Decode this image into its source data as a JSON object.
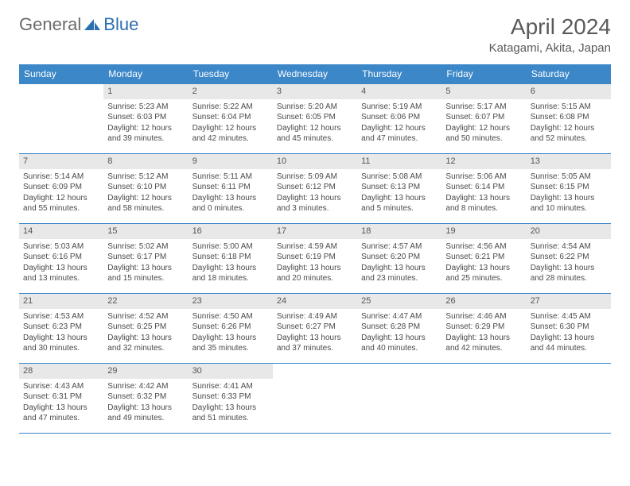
{
  "brand": {
    "part1": "General",
    "part2": "Blue",
    "icon_color": "#2b6fb0"
  },
  "title": "April 2024",
  "location": "Katagami, Akita, Japan",
  "colors": {
    "header_bg": "#3b87c8",
    "header_text": "#ffffff",
    "cell_border": "#3b87c8",
    "daynum_bg": "#e8e8e8",
    "text": "#4a4a4a"
  },
  "typography": {
    "title_fontsize": 28,
    "location_fontsize": 15,
    "dayheader_fontsize": 12,
    "cell_fontsize": 10
  },
  "day_headers": [
    "Sunday",
    "Monday",
    "Tuesday",
    "Wednesday",
    "Thursday",
    "Friday",
    "Saturday"
  ],
  "weeks": [
    [
      {
        "day": "",
        "lines": []
      },
      {
        "day": "1",
        "lines": [
          "Sunrise: 5:23 AM",
          "Sunset: 6:03 PM",
          "Daylight: 12 hours and 39 minutes."
        ]
      },
      {
        "day": "2",
        "lines": [
          "Sunrise: 5:22 AM",
          "Sunset: 6:04 PM",
          "Daylight: 12 hours and 42 minutes."
        ]
      },
      {
        "day": "3",
        "lines": [
          "Sunrise: 5:20 AM",
          "Sunset: 6:05 PM",
          "Daylight: 12 hours and 45 minutes."
        ]
      },
      {
        "day": "4",
        "lines": [
          "Sunrise: 5:19 AM",
          "Sunset: 6:06 PM",
          "Daylight: 12 hours and 47 minutes."
        ]
      },
      {
        "day": "5",
        "lines": [
          "Sunrise: 5:17 AM",
          "Sunset: 6:07 PM",
          "Daylight: 12 hours and 50 minutes."
        ]
      },
      {
        "day": "6",
        "lines": [
          "Sunrise: 5:15 AM",
          "Sunset: 6:08 PM",
          "Daylight: 12 hours and 52 minutes."
        ]
      }
    ],
    [
      {
        "day": "7",
        "lines": [
          "Sunrise: 5:14 AM",
          "Sunset: 6:09 PM",
          "Daylight: 12 hours and 55 minutes."
        ]
      },
      {
        "day": "8",
        "lines": [
          "Sunrise: 5:12 AM",
          "Sunset: 6:10 PM",
          "Daylight: 12 hours and 58 minutes."
        ]
      },
      {
        "day": "9",
        "lines": [
          "Sunrise: 5:11 AM",
          "Sunset: 6:11 PM",
          "Daylight: 13 hours and 0 minutes."
        ]
      },
      {
        "day": "10",
        "lines": [
          "Sunrise: 5:09 AM",
          "Sunset: 6:12 PM",
          "Daylight: 13 hours and 3 minutes."
        ]
      },
      {
        "day": "11",
        "lines": [
          "Sunrise: 5:08 AM",
          "Sunset: 6:13 PM",
          "Daylight: 13 hours and 5 minutes."
        ]
      },
      {
        "day": "12",
        "lines": [
          "Sunrise: 5:06 AM",
          "Sunset: 6:14 PM",
          "Daylight: 13 hours and 8 minutes."
        ]
      },
      {
        "day": "13",
        "lines": [
          "Sunrise: 5:05 AM",
          "Sunset: 6:15 PM",
          "Daylight: 13 hours and 10 minutes."
        ]
      }
    ],
    [
      {
        "day": "14",
        "lines": [
          "Sunrise: 5:03 AM",
          "Sunset: 6:16 PM",
          "Daylight: 13 hours and 13 minutes."
        ]
      },
      {
        "day": "15",
        "lines": [
          "Sunrise: 5:02 AM",
          "Sunset: 6:17 PM",
          "Daylight: 13 hours and 15 minutes."
        ]
      },
      {
        "day": "16",
        "lines": [
          "Sunrise: 5:00 AM",
          "Sunset: 6:18 PM",
          "Daylight: 13 hours and 18 minutes."
        ]
      },
      {
        "day": "17",
        "lines": [
          "Sunrise: 4:59 AM",
          "Sunset: 6:19 PM",
          "Daylight: 13 hours and 20 minutes."
        ]
      },
      {
        "day": "18",
        "lines": [
          "Sunrise: 4:57 AM",
          "Sunset: 6:20 PM",
          "Daylight: 13 hours and 23 minutes."
        ]
      },
      {
        "day": "19",
        "lines": [
          "Sunrise: 4:56 AM",
          "Sunset: 6:21 PM",
          "Daylight: 13 hours and 25 minutes."
        ]
      },
      {
        "day": "20",
        "lines": [
          "Sunrise: 4:54 AM",
          "Sunset: 6:22 PM",
          "Daylight: 13 hours and 28 minutes."
        ]
      }
    ],
    [
      {
        "day": "21",
        "lines": [
          "Sunrise: 4:53 AM",
          "Sunset: 6:23 PM",
          "Daylight: 13 hours and 30 minutes."
        ]
      },
      {
        "day": "22",
        "lines": [
          "Sunrise: 4:52 AM",
          "Sunset: 6:25 PM",
          "Daylight: 13 hours and 32 minutes."
        ]
      },
      {
        "day": "23",
        "lines": [
          "Sunrise: 4:50 AM",
          "Sunset: 6:26 PM",
          "Daylight: 13 hours and 35 minutes."
        ]
      },
      {
        "day": "24",
        "lines": [
          "Sunrise: 4:49 AM",
          "Sunset: 6:27 PM",
          "Daylight: 13 hours and 37 minutes."
        ]
      },
      {
        "day": "25",
        "lines": [
          "Sunrise: 4:47 AM",
          "Sunset: 6:28 PM",
          "Daylight: 13 hours and 40 minutes."
        ]
      },
      {
        "day": "26",
        "lines": [
          "Sunrise: 4:46 AM",
          "Sunset: 6:29 PM",
          "Daylight: 13 hours and 42 minutes."
        ]
      },
      {
        "day": "27",
        "lines": [
          "Sunrise: 4:45 AM",
          "Sunset: 6:30 PM",
          "Daylight: 13 hours and 44 minutes."
        ]
      }
    ],
    [
      {
        "day": "28",
        "lines": [
          "Sunrise: 4:43 AM",
          "Sunset: 6:31 PM",
          "Daylight: 13 hours and 47 minutes."
        ]
      },
      {
        "day": "29",
        "lines": [
          "Sunrise: 4:42 AM",
          "Sunset: 6:32 PM",
          "Daylight: 13 hours and 49 minutes."
        ]
      },
      {
        "day": "30",
        "lines": [
          "Sunrise: 4:41 AM",
          "Sunset: 6:33 PM",
          "Daylight: 13 hours and 51 minutes."
        ]
      },
      {
        "day": "",
        "lines": []
      },
      {
        "day": "",
        "lines": []
      },
      {
        "day": "",
        "lines": []
      },
      {
        "day": "",
        "lines": []
      }
    ]
  ]
}
